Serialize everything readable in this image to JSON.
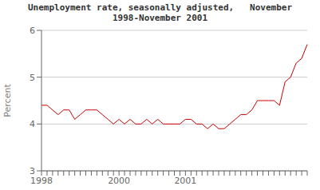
{
  "chart_data": {
    "type": "line",
    "title": "Unemployment rate, seasonally adjusted,   November\n1998-November 2001",
    "ylabel": "Percent",
    "color": "#cc0000",
    "ylim": [
      3,
      6
    ],
    "yticks": [
      3,
      4,
      5,
      6
    ],
    "grid": true,
    "categories": [
      "1998",
      null,
      null,
      null,
      null,
      null,
      null,
      null,
      null,
      null,
      null,
      null,
      null,
      null,
      "2000",
      null,
      null,
      null,
      null,
      null,
      null,
      null,
      null,
      null,
      null,
      null,
      "2001",
      null,
      null,
      null,
      null,
      null,
      null,
      null,
      null,
      null,
      null,
      null,
      null,
      null,
      null,
      null,
      null,
      null,
      null,
      null,
      null,
      null,
      null
    ],
    "values": [
      4.4,
      4.4,
      4.3,
      4.2,
      4.3,
      4.3,
      4.1,
      4.2,
      4.3,
      4.3,
      4.3,
      4.2,
      4.1,
      4.0,
      4.1,
      4.0,
      4.1,
      4.0,
      4.0,
      4.1,
      4.0,
      4.1,
      4.0,
      4.0,
      4.0,
      4.0,
      4.1,
      4.1,
      4.0,
      4.0,
      3.9,
      4.0,
      3.9,
      3.9,
      4.0,
      4.1,
      4.2,
      4.2,
      4.3,
      4.5,
      4.5,
      4.5,
      4.5,
      4.4,
      4.9,
      5.0,
      5.3,
      5.4,
      5.7
    ]
  }
}
